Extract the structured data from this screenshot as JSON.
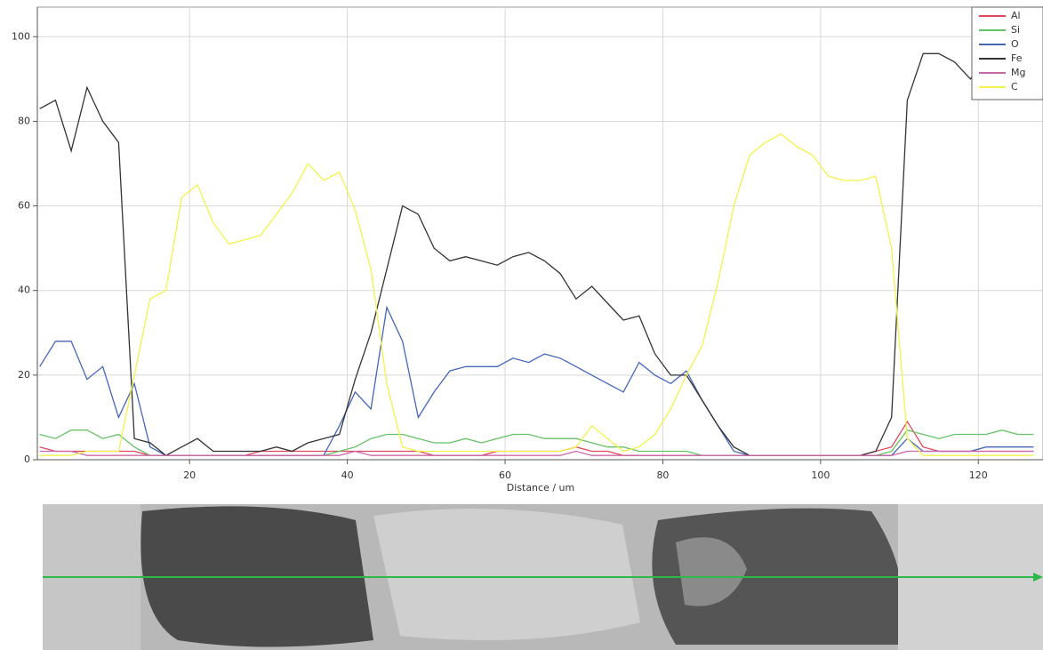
{
  "chart_data": {
    "type": "line",
    "xlabel": "Distance / um",
    "x": [
      1,
      3,
      5,
      7,
      9,
      11,
      13,
      15,
      17,
      19,
      21,
      23,
      25,
      27,
      29,
      31,
      33,
      35,
      37,
      39,
      41,
      43,
      45,
      47,
      49,
      51,
      53,
      55,
      57,
      59,
      61,
      63,
      65,
      67,
      69,
      71,
      73,
      75,
      77,
      79,
      81,
      83,
      85,
      87,
      89,
      91,
      93,
      95,
      97,
      99,
      101,
      103,
      105,
      107,
      109,
      111,
      113,
      115,
      117,
      119,
      121,
      123,
      125,
      127
    ],
    "xlim": [
      0.7,
      128.2
    ],
    "xticks": [
      20,
      40,
      60,
      80,
      100,
      120
    ],
    "ylim": [
      0,
      107
    ],
    "yticks": [
      0,
      20,
      40,
      60,
      80,
      100
    ],
    "grid": true,
    "legend": "top-right",
    "series": [
      {
        "name": "Al",
        "color": "#e0475a",
        "values": [
          3,
          2,
          2,
          2,
          2,
          2,
          2,
          1,
          1,
          1,
          1,
          1,
          1,
          1,
          2,
          2,
          2,
          2,
          2,
          2,
          2,
          2,
          2,
          2,
          2,
          1,
          1,
          1,
          1,
          2,
          2,
          2,
          2,
          2,
          3,
          2,
          2,
          1,
          1,
          1,
          1,
          1,
          1,
          1,
          1,
          1,
          1,
          1,
          1,
          1,
          1,
          1,
          1,
          2,
          3,
          9,
          3,
          2,
          2,
          2,
          2,
          2,
          2,
          2
        ]
      },
      {
        "name": "Si",
        "color": "#66c266",
        "values": [
          6,
          5,
          7,
          7,
          5,
          6,
          3,
          1,
          1,
          1,
          1,
          1,
          1,
          1,
          1,
          1,
          1,
          1,
          1,
          2,
          3,
          5,
          6,
          6,
          5,
          4,
          4,
          5,
          4,
          5,
          6,
          6,
          5,
          5,
          5,
          4,
          3,
          3,
          2,
          2,
          2,
          2,
          1,
          1,
          1,
          1,
          1,
          1,
          1,
          1,
          1,
          1,
          1,
          1,
          2,
          7,
          6,
          5,
          6,
          6,
          6,
          7,
          6,
          6
        ]
      },
      {
        "name": "O",
        "color": "#4466bb",
        "values": [
          22,
          28,
          28,
          19,
          22,
          10,
          18,
          3,
          1,
          1,
          1,
          1,
          1,
          1,
          1,
          1,
          1,
          1,
          1,
          8,
          16,
          12,
          36,
          28,
          10,
          16,
          21,
          22,
          22,
          22,
          24,
          23,
          25,
          24,
          22,
          20,
          18,
          16,
          23,
          20,
          18,
          21,
          14,
          8,
          2,
          1,
          1,
          1,
          1,
          1,
          1,
          1,
          1,
          1,
          1,
          5,
          2,
          2,
          2,
          2,
          3,
          3,
          3,
          3
        ]
      },
      {
        "name": "Fe",
        "color": "#333333",
        "values": [
          83,
          85,
          73,
          88,
          80,
          75,
          5,
          4,
          1,
          3,
          5,
          2,
          2,
          2,
          2,
          3,
          2,
          4,
          5,
          6,
          19,
          30,
          45,
          60,
          58,
          50,
          47,
          48,
          47,
          46,
          48,
          49,
          47,
          44,
          38,
          41,
          37,
          33,
          34,
          25,
          20,
          20,
          14,
          8,
          3,
          1,
          1,
          1,
          1,
          1,
          1,
          1,
          1,
          2,
          10,
          85,
          96,
          96,
          94,
          90,
          95,
          96,
          95,
          95
        ]
      },
      {
        "name": "Mg",
        "color": "#cc66aa",
        "values": [
          2,
          2,
          2,
          1,
          1,
          1,
          1,
          1,
          1,
          1,
          1,
          1,
          1,
          1,
          1,
          1,
          1,
          1,
          1,
          1,
          2,
          1,
          1,
          1,
          1,
          1,
          1,
          1,
          1,
          1,
          1,
          1,
          1,
          1,
          2,
          1,
          1,
          1,
          1,
          1,
          1,
          1,
          1,
          1,
          1,
          1,
          1,
          1,
          1,
          1,
          1,
          1,
          1,
          1,
          1,
          2,
          2,
          2,
          2,
          2,
          2,
          2,
          2,
          2
        ]
      },
      {
        "name": "C",
        "color": "#f2f24a",
        "values": [
          1,
          1,
          1,
          2,
          2,
          2,
          20,
          38,
          40,
          62,
          65,
          56,
          51,
          52,
          53,
          58,
          63,
          70,
          66,
          68,
          59,
          45,
          18,
          3,
          2,
          2,
          2,
          2,
          2,
          2,
          2,
          2,
          2,
          2,
          3,
          8,
          5,
          2,
          3,
          6,
          12,
          20,
          27,
          42,
          60,
          72,
          75,
          77,
          74,
          72,
          67,
          66,
          66,
          67,
          50,
          5,
          1,
          1,
          1,
          1,
          1,
          1,
          1,
          1
        ]
      }
    ]
  }
}
